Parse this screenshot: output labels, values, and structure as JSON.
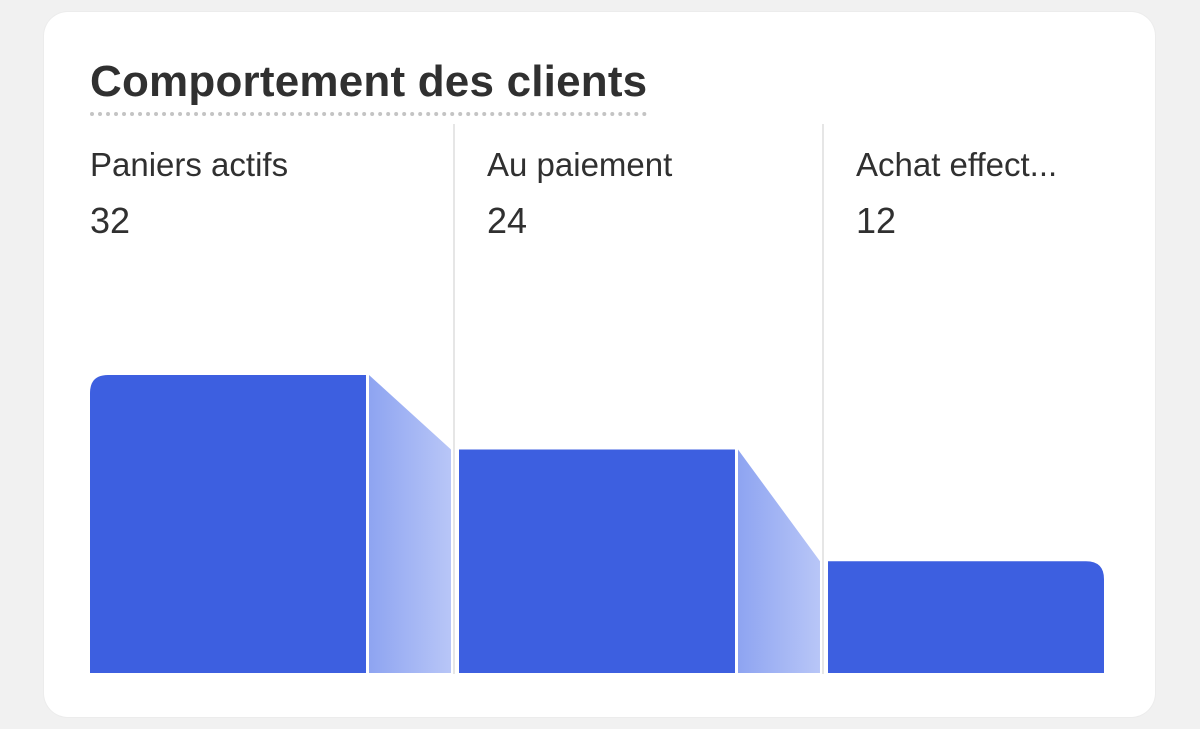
{
  "card": {
    "title": "Comportement des clients"
  },
  "colors": {
    "bar": "#3d5fe0",
    "connector_from": "#8ea4f1",
    "connector_to": "#b8c6f7",
    "divider": "#e6e6e6"
  },
  "chart_data": {
    "type": "bar",
    "subtype": "funnel",
    "title": "Comportement des clients",
    "categories": [
      "Paniers actifs",
      "Au paiement",
      "Achat effect..."
    ],
    "values": [
      32,
      24,
      12
    ],
    "value_labels": [
      "32",
      "24",
      "12"
    ],
    "grid": false,
    "legend": "none"
  }
}
